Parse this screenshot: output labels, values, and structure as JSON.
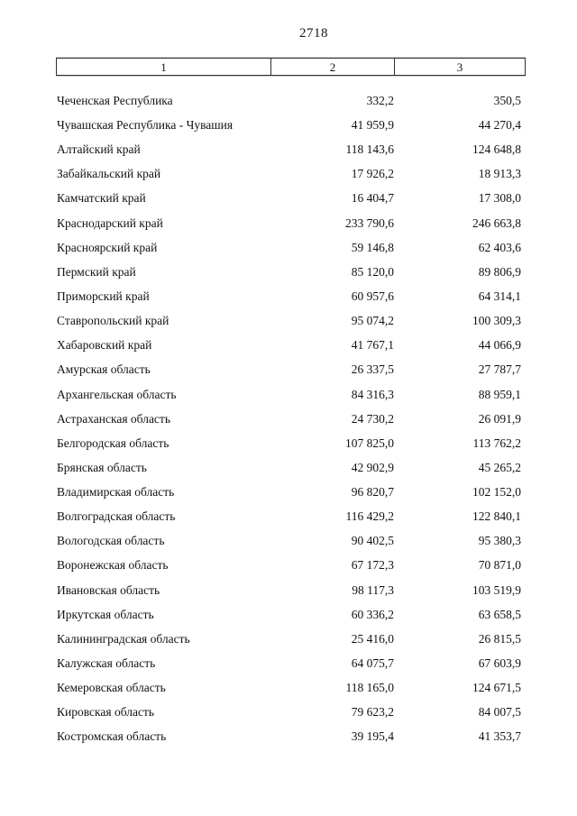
{
  "page": {
    "number": "2718"
  },
  "table": {
    "header": [
      "1",
      "2",
      "3"
    ],
    "rows": [
      {
        "name": "Чеченская Республика",
        "col2": "332,2",
        "col3": "350,5"
      },
      {
        "name": "Чувашская Республика - Чувашия",
        "col2": "41 959,9",
        "col3": "44 270,4"
      },
      {
        "name": "Алтайский край",
        "col2": "118 143,6",
        "col3": "124 648,8"
      },
      {
        "name": "Забайкальский край",
        "col2": "17 926,2",
        "col3": "18 913,3"
      },
      {
        "name": "Камчатский край",
        "col2": "16 404,7",
        "col3": "17 308,0"
      },
      {
        "name": "Краснодарский край",
        "col2": "233 790,6",
        "col3": "246 663,8"
      },
      {
        "name": "Красноярский край",
        "col2": "59 146,8",
        "col3": "62 403,6"
      },
      {
        "name": "Пермский край",
        "col2": "85 120,0",
        "col3": "89 806,9"
      },
      {
        "name": "Приморский край",
        "col2": "60 957,6",
        "col3": "64 314,1"
      },
      {
        "name": "Ставропольский край",
        "col2": "95 074,2",
        "col3": "100 309,3"
      },
      {
        "name": "Хабаровский край",
        "col2": "41 767,1",
        "col3": "44 066,9"
      },
      {
        "name": "Амурская область",
        "col2": "26 337,5",
        "col3": "27 787,7"
      },
      {
        "name": "Архангельская область",
        "col2": "84 316,3",
        "col3": "88 959,1"
      },
      {
        "name": "Астраханская область",
        "col2": "24 730,2",
        "col3": "26 091,9"
      },
      {
        "name": "Белгородская область",
        "col2": "107 825,0",
        "col3": "113 762,2"
      },
      {
        "name": "Брянская область",
        "col2": "42 902,9",
        "col3": "45 265,2"
      },
      {
        "name": "Владимирская область",
        "col2": "96 820,7",
        "col3": "102 152,0"
      },
      {
        "name": "Волгоградская область",
        "col2": "116 429,2",
        "col3": "122 840,1"
      },
      {
        "name": "Вологодская область",
        "col2": "90 402,5",
        "col3": "95 380,3"
      },
      {
        "name": "Воронежская область",
        "col2": "67 172,3",
        "col3": "70 871,0"
      },
      {
        "name": "Ивановская область",
        "col2": "98 117,3",
        "col3": "103 519,9"
      },
      {
        "name": "Иркутская область",
        "col2": "60 336,2",
        "col3": "63 658,5"
      },
      {
        "name": "Калининградская область",
        "col2": "25 416,0",
        "col3": "26 815,5"
      },
      {
        "name": "Калужская область",
        "col2": "64 075,7",
        "col3": "67 603,9"
      },
      {
        "name": "Кемеровская область",
        "col2": "118 165,0",
        "col3": "124 671,5"
      },
      {
        "name": "Кировская область",
        "col2": "79 623,2",
        "col3": "84 007,5"
      },
      {
        "name": "Костромская область",
        "col2": "39 195,4",
        "col3": "41 353,7"
      }
    ]
  }
}
